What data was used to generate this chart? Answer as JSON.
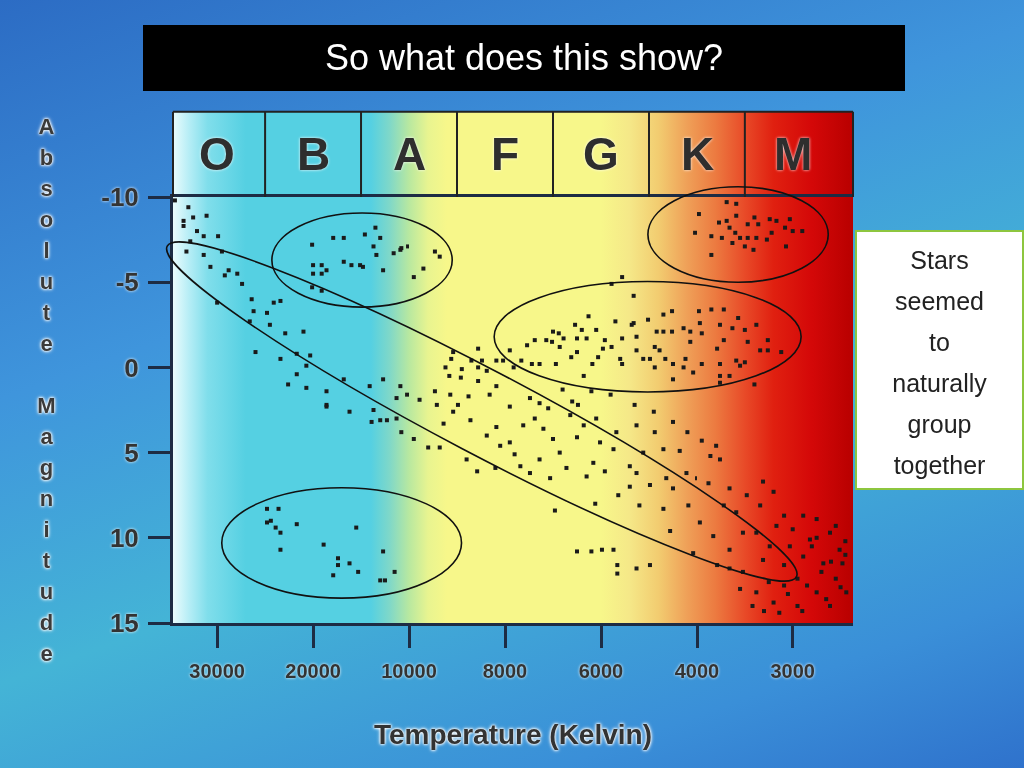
{
  "chart_data": [
    {
      "type": "scatter",
      "title": "So what does this show?",
      "ylabel": "Absolute Magnitude",
      "marker": "square",
      "color": "#1a1a1a",
      "xlim": [
        34600,
        10000
      ],
      "xticks": [
        30000,
        20000
      ],
      "ylim": [
        15,
        -10
      ],
      "yticks": [
        -10,
        -5,
        0,
        5,
        10,
        15
      ],
      "annotations": [
        "O",
        "B"
      ],
      "x": [
        34400,
        33000,
        32500,
        33500,
        33500,
        32100,
        31400,
        29900,
        31100,
        33200,
        31400,
        30700,
        29500,
        29200,
        27900,
        27400,
        26400,
        30000,
        26200,
        24800,
        24100,
        26600,
        24500,
        22900,
        21000,
        26000,
        23400,
        21700,
        20300,
        20700,
        21700,
        22600,
        20700,
        18600,
        18600,
        16800,
        14100,
        12700,
        10900,
        11300,
        23400,
        28800,
        32800,
        17900,
        16800,
        20100,
        14600,
        13500,
        13000,
        13700,
        13400,
        11600,
        10900,
        20000,
        19100,
        18600,
        20000,
        19100,
        16800,
        16000,
        15100,
        14800,
        12700,
        20100,
        19100,
        10800,
        10100,
        10200,
        24800,
        23600,
        24400,
        24800,
        23900,
        23400,
        21700,
        23400,
        18900,
        15500,
        17400,
        17400,
        16200,
        17900,
        15300,
        12700,
        11500,
        13000,
        12500,
        18600,
        16200,
        13700,
        13900,
        13000,
        12300,
        11300,
        10800
      ],
      "values": [
        -9.8,
        -9.4,
        -8.8,
        -8.6,
        -8.3,
        -8.0,
        -7.7,
        -7.7,
        -8.9,
        -6.8,
        -6.6,
        -5.9,
        -6.8,
        -5.4,
        -5.5,
        -4.9,
        -4.0,
        -3.8,
        -3.3,
        -3.2,
        -3.8,
        -2.7,
        -2.5,
        -2.0,
        -2.1,
        -0.9,
        -0.5,
        -0.8,
        -0.7,
        -0.1,
        0.4,
        1.0,
        1.2,
        1.4,
        2.2,
        0.7,
        1.1,
        0.7,
        1.1,
        1.8,
        -3.9,
        -5.7,
        -7.4,
        -7.6,
        -7.6,
        -7.2,
        -7.8,
        -8.2,
        -7.6,
        -7.1,
        -6.6,
        -6.7,
        -6.9,
        -6.0,
        -6.0,
        -5.7,
        -5.5,
        -5.5,
        -6.2,
        -6.0,
        -6.0,
        -5.9,
        -5.7,
        -4.7,
        -4.5,
        -7.0,
        -7.1,
        1.6,
        8.3,
        8.3,
        9.0,
        9.1,
        9.4,
        9.7,
        9.2,
        10.7,
        10.4,
        9.4,
        11.2,
        11.6,
        11.5,
        12.2,
        12.0,
        10.8,
        12.0,
        12.5,
        12.5,
        2.3,
        2.6,
        2.5,
        3.2,
        3.1,
        3.1,
        3.0,
        3.8
      ]
    },
    {
      "type": "scatter",
      "xlabel": "Temperature (Kelvin)",
      "marker": "square",
      "color": "#1a1a1a",
      "xlim": [
        10000,
        4000
      ],
      "xticks": [
        10000,
        8000,
        6000
      ],
      "ylim": [
        15,
        -10
      ],
      "yticks": [
        -10,
        -5,
        0,
        5,
        10,
        15
      ],
      "tick_labels": "x",
      "annotations": [
        "A",
        "F",
        "G"
      ],
      "x": [
        9460,
        9360,
        9700,
        9900,
        5560,
        5780,
        5320,
        6260,
        5700,
        6540,
        6400,
        6100,
        7000,
        6880,
        6780,
        6500,
        6300,
        5560,
        5320,
        7380,
        7140,
        7020,
        7540,
        6860,
        5920,
        5960,
        5780,
        7900,
        6500,
        6620,
        6060,
        7660,
        7440,
        7280,
        6940,
        6180,
        5600,
        5560,
        6360,
        5360,
        5260,
        5020,
        4700,
        4520,
        4840,
        4700,
        4520,
        4280,
        4140,
        4140,
        5260,
        5120,
        4880,
        4780,
        4980,
        4660,
        4880,
        4500,
        4240,
        4280,
        4080,
        4500,
        4040,
        9080,
        8560,
        9120,
        8700,
        8480,
        8180,
        8040,
        9240,
        8900,
        8560,
        9160,
        8920,
        8380,
        8560,
        8180,
        9460,
        9140,
        8760,
        8320,
        7820,
        7480,
        7280,
        9780,
        9420,
        8980,
        7900,
        6480,
        9900,
        9600,
        9360,
        8800,
        8580,
        9280,
        9080,
        8720,
        8380,
        8180,
        8100,
        7900,
        7800,
        7680,
        8200,
        7620,
        7380,
        7200,
        7280,
        7480,
        7000,
        6860,
        6720,
        7060,
        6500,
        6360,
        6640,
        6100,
        6020,
        6160,
        6300,
        5920,
        5740,
        5680,
        5640,
        6120,
        6960,
        5400,
        5400,
        6500,
        6200,
        5980,
        5740,
        5660,
        5660,
        5260,
        4880,
        5120,
        4700,
        4360,
        5260,
        4980,
        4640,
        4500,
        4220,
        4000,
        5200,
        4700,
        4180,
        4560,
        4080,
        5260,
        4980,
        5300,
        4900,
        4500,
        4200,
        5800,
        6200,
        6800,
        7100,
        6600
      ],
      "values": [
        -6.8,
        -6.5,
        -5.8,
        -5.3,
        -5.3,
        -4.9,
        -4.2,
        -3.0,
        -2.7,
        -2.5,
        -2.2,
        -2.2,
        -2.1,
        -2.0,
        -1.7,
        -1.7,
        -1.7,
        -1.7,
        -2.6,
        -1.6,
        -1.6,
        -1.5,
        -1.3,
        -1.2,
        -1.6,
        -1.1,
        -1.2,
        -1.0,
        -0.9,
        -0.6,
        -0.6,
        -0.4,
        -0.2,
        -0.2,
        -0.2,
        -0.2,
        -0.5,
        -0.2,
        0.5,
        -2.5,
        -1.8,
        -2.8,
        -3.1,
        -3.3,
        -2.1,
        -2.1,
        -2.1,
        -2.3,
        -2.1,
        -1.5,
        -1.0,
        -0.5,
        -1.2,
        -1.0,
        -0.5,
        -0.5,
        0.0,
        -0.2,
        -0.5,
        0.0,
        0.3,
        0.7,
        -7.9,
        -0.9,
        -1.1,
        -0.5,
        -0.4,
        -0.4,
        -0.4,
        -0.4,
        0.0,
        0.1,
        0.0,
        0.5,
        0.6,
        0.2,
        0.8,
        1.1,
        1.4,
        1.6,
        1.7,
        1.6,
        0.0,
        1.8,
        2.1,
        1.9,
        2.2,
        2.2,
        2.3,
        2.2,
        4.2,
        4.7,
        4.7,
        5.4,
        6.1,
        3.3,
        2.6,
        3.1,
        4.0,
        3.5,
        4.6,
        4.4,
        5.1,
        5.8,
        5.9,
        3.4,
        3.0,
        3.6,
        5.4,
        6.2,
        4.2,
        5.0,
        5.9,
        6.5,
        4.1,
        3.4,
        2.8,
        3.0,
        4.4,
        5.6,
        6.4,
        6.1,
        4.8,
        3.8,
        7.5,
        8.0,
        8.4,
        5.8,
        7.0,
        10.8,
        10.8,
        10.7,
        10.7,
        11.6,
        12.1,
        3.4,
        3.8,
        5.0,
        4.8,
        4.9,
        6.2,
        6.9,
        6.5,
        7.1,
        6.2,
        6.5,
        8.1,
        8.3,
        8.1,
        9.6,
        10.9,
        11.8,
        11.6,
        2.2,
        2.6,
        3.2,
        3.8,
        1.6,
        1.4,
        1.3,
        2.4,
        2.0
      ]
    },
    {
      "type": "scatter",
      "marker": "square",
      "color": "#1a1a1a",
      "xlim": [
        4000,
        2370
      ],
      "xticks": [
        4000,
        3000
      ],
      "ylim": [
        15,
        -10
      ],
      "yticks": [
        -10,
        -5,
        0,
        5,
        10,
        15
      ],
      "tick_labels": "x",
      "annotations": [
        "K",
        "M",
        "Stars seemed to naturally group together"
      ],
      "x": [
        3980,
        3970,
        3950,
        3850,
        3720,
        3760,
        3630,
        3500,
        3570,
        3380,
        3720,
        3790,
        3470,
        3260,
        3950,
        3760,
        3590,
        3550,
        3500,
        3760,
        3660,
        3760,
        3400,
        3340,
        3260,
        3120,
        3980,
        3690,
        3590,
        3590,
        3770,
        3690,
        3470,
        3360,
        3400,
        3240,
        3170,
        3030,
        3080,
        3000,
        3220,
        3660,
        3850,
        3740,
        3600,
        3550,
        3470,
        3380,
        3630,
        3500,
        3410,
        3270,
        3070,
        3850,
        2900,
        3880,
        3760,
        3860,
        3970,
        3830,
        3720,
        3660,
        3590,
        3520,
        3480,
        3340,
        3380,
        3660,
        3790,
        3660,
        3520,
        3310,
        3240,
        3170,
        3310,
        3200,
        3090,
        3550,
        3380,
        3420,
        3200,
        3090,
        2950,
        2890,
        2820,
        2890,
        2750,
        2610,
        2510,
        2680,
        2550,
        2750,
        2950,
        2610,
        2440,
        3140,
        2480,
        3030,
        3090,
        3950,
        3800,
        2800,
        2700,
        2550,
        2450,
        3000,
        2850,
        2650,
        2500,
        3050,
        3250,
        2900,
        2450,
        2750,
        3300,
        2600
      ],
      "values": [
        -3.3,
        -2.6,
        -2.0,
        -3.4,
        -3.4,
        -2.5,
        -2.3,
        -2.2,
        -2.9,
        -2.5,
        -1.6,
        -1.1,
        -1.5,
        -1.6,
        -0.2,
        -0.2,
        -0.4,
        -0.1,
        -0.3,
        0.5,
        0.5,
        0.9,
        1.0,
        -1.0,
        -1.0,
        -0.9,
        -9.0,
        -9.7,
        -9.6,
        -8.9,
        -8.5,
        -8.6,
        -8.4,
        -8.4,
        -8.8,
        -8.7,
        -8.6,
        -8.7,
        -8.2,
        -8.0,
        -7.9,
        -8.2,
        -7.7,
        -7.6,
        -7.9,
        -7.6,
        -7.6,
        -7.6,
        -7.3,
        -7.1,
        -6.9,
        -7.5,
        -7.1,
        -6.6,
        -8.0,
        6.8,
        5.4,
        5.2,
        9.1,
        9.9,
        8.1,
        7.1,
        8.5,
        9.7,
        7.5,
        8.1,
        9.7,
        10.7,
        11.6,
        11.8,
        12.0,
        11.3,
        10.5,
        9.3,
        6.7,
        7.3,
        8.7,
        13.0,
        13.2,
        14.0,
        13.8,
        12.8,
        12.4,
        11.1,
        10.1,
        8.7,
        8.9,
        9.7,
        10.7,
        11.5,
        12.4,
        13.2,
        14.0,
        14.0,
        13.2,
        14.4,
        11.5,
        10.5,
        11.6,
        4.3,
        4.6,
        10.5,
        12.0,
        9.3,
        11.0,
        9.5,
        12.8,
        13.6,
        12.9,
        13.3,
        12.6,
        14.3,
        10.2,
        10.0,
        14.3,
        11.4
      ]
    }
  ]
}
